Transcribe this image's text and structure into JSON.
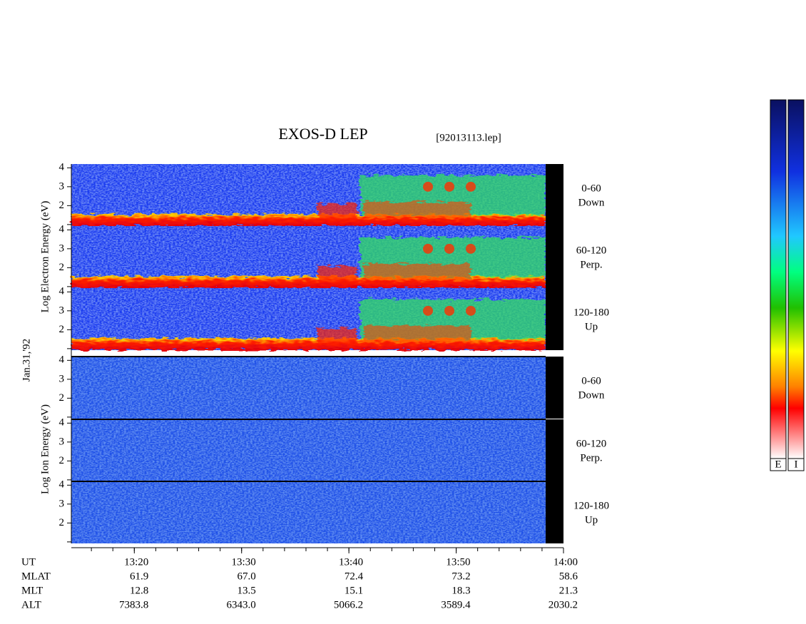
{
  "chart_data": {
    "type": "spectrogram",
    "title": "EXOS-D LEP",
    "file": "[92013113.lep]",
    "date": "Jan.31,'92",
    "electron_label": "Log  Electron  Energy (eV)",
    "ion_label": "Log  Ion  Energy (eV)",
    "panels": [
      {
        "species": "electron",
        "angle": "0-60",
        "direction": "Down"
      },
      {
        "species": "electron",
        "angle": "60-120",
        "direction": "Perp."
      },
      {
        "species": "electron",
        "angle": "120-180",
        "direction": "Up"
      },
      {
        "species": "ion",
        "angle": "0-60",
        "direction": "Down"
      },
      {
        "species": "ion",
        "angle": "60-120",
        "direction": "Perp."
      },
      {
        "species": "ion",
        "angle": "120-180",
        "direction": "Up"
      }
    ],
    "ylim": [
      0.92,
      4.2
    ],
    "yticks": [
      2,
      3,
      4
    ],
    "yminor": [
      1
    ],
    "xlim": [
      794.13,
      840
    ],
    "xticks": [
      {
        "value": 800,
        "label": "13:20"
      },
      {
        "value": 810,
        "label": "13:30"
      },
      {
        "value": 820,
        "label": "13:40"
      },
      {
        "value": 830,
        "label": "13:50"
      },
      {
        "value": 840,
        "label": "14:00"
      }
    ],
    "xminor_step": 2,
    "ephemeris": [
      {
        "label": "UT"
      },
      {
        "label": "MLAT",
        "values": [
          "61.9",
          "67.0",
          "72.4",
          "73.2",
          "58.6"
        ]
      },
      {
        "label": "MLT",
        "values": [
          "12.8",
          "13.5",
          "15.1",
          "18.3",
          "21.3"
        ]
      },
      {
        "label": "ALT",
        "values": [
          "7383.8",
          "6343.0",
          "5066.2",
          "3589.4",
          "2030.2"
        ]
      }
    ],
    "colorbar_labels": [
      "E",
      "I"
    ]
  }
}
